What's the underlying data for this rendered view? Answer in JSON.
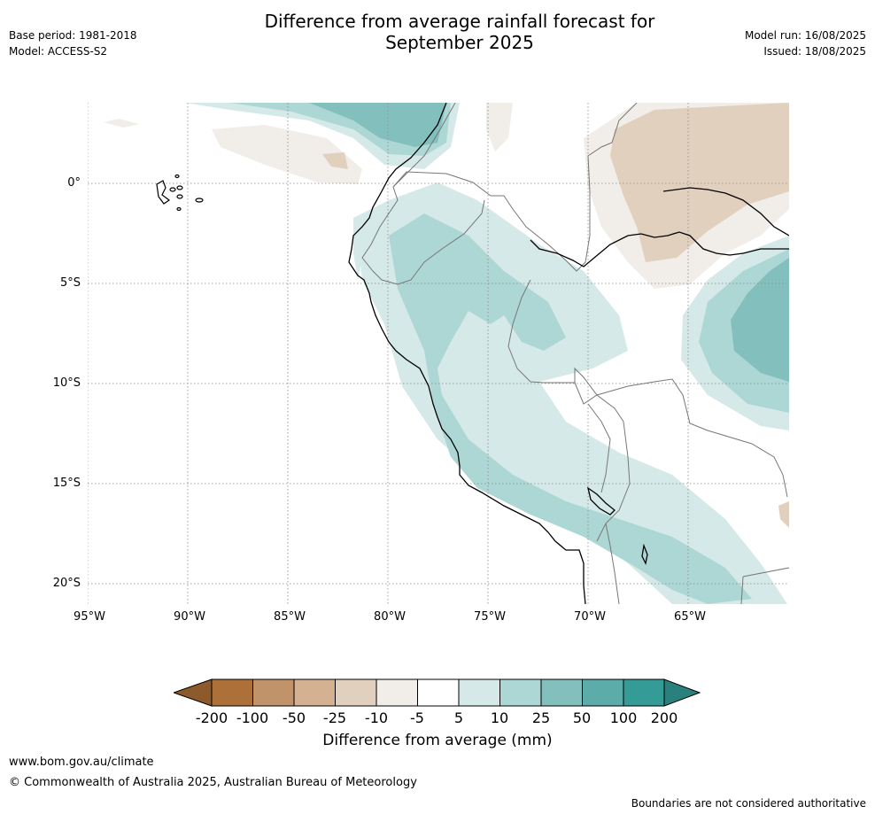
{
  "title_line1": "Difference from average rainfall forecast for",
  "title_line2": "September 2025",
  "meta_left": {
    "base_period": "Base period: 1981-2018",
    "model": "Model: ACCESS-S2"
  },
  "meta_right": {
    "model_run": "Model run: 16/08/2025",
    "issued": "Issued: 18/08/2025"
  },
  "map": {
    "lat_labels": [
      "0°",
      "5°S",
      "10°S",
      "15°S",
      "20°S"
    ],
    "lon_labels": [
      "95°W",
      "90°W",
      "85°W",
      "80°W",
      "75°W",
      "70°W",
      "65°W"
    ]
  },
  "colorbar": {
    "title": "Difference from average (mm)",
    "labels": [
      "-200",
      "-100",
      "-50",
      "-25",
      "-10",
      "-5",
      "5",
      "10",
      "25",
      "50",
      "100",
      "200"
    ],
    "colors": [
      "#8c5a2b",
      "#ad7039",
      "#c0936a",
      "#d4b191",
      "#e2d0bf",
      "#f1ede8",
      "#ffffff",
      "#d5e9e8",
      "#add7d5",
      "#83c0bd",
      "#5cadaa",
      "#359b97",
      "#2a807c"
    ]
  },
  "footer": {
    "url": "www.bom.gov.au/climate",
    "copyright": "© Commonwealth of Australia 2025, Australian Bureau of Meteorology",
    "disclaimer": "Boundaries are not considered authoritative"
  }
}
